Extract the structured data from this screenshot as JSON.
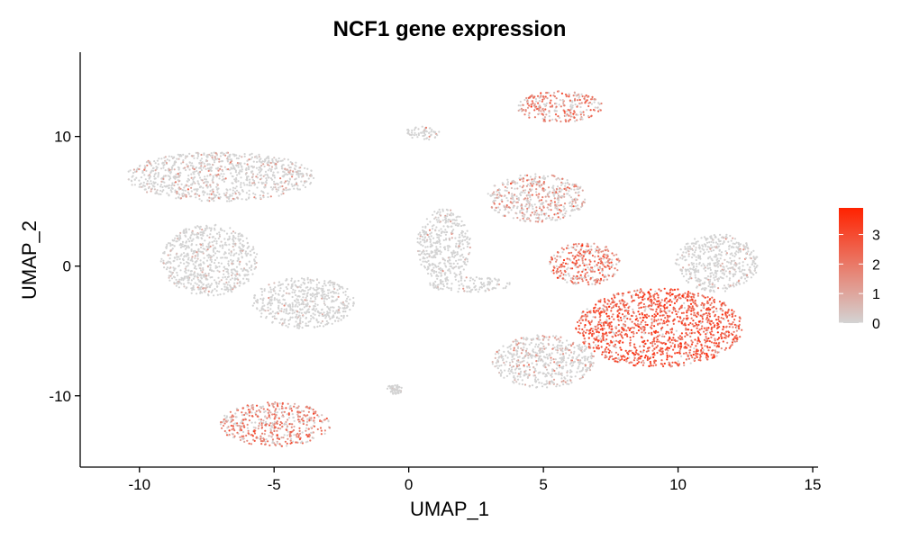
{
  "chart_data": {
    "type": "scatter",
    "title": "NCF1 gene expression",
    "xlabel": "UMAP_1",
    "ylabel": "UMAP_2",
    "xlim": [
      -12.2,
      15.2
    ],
    "ylim": [
      -15.5,
      16.5
    ],
    "x_ticks": [
      {
        "value": -10,
        "label": "-10"
      },
      {
        "value": -5,
        "label": "-5"
      },
      {
        "value": 0,
        "label": "0"
      },
      {
        "value": 5,
        "label": "5"
      },
      {
        "value": 10,
        "label": "10"
      },
      {
        "value": 15,
        "label": "15"
      }
    ],
    "y_ticks": [
      {
        "value": -10,
        "label": "-10"
      },
      {
        "value": 0,
        "label": "0"
      },
      {
        "value": 10,
        "label": "10"
      }
    ],
    "grid": false,
    "legend": {
      "placement": "right",
      "range": [
        0,
        3.9
      ],
      "low_color": "#d3d3d3",
      "high_color": "#ff2200",
      "ticks": [
        {
          "value": 0,
          "label": "0"
        },
        {
          "value": 1,
          "label": "1"
        },
        {
          "value": 2,
          "label": "2"
        },
        {
          "value": 3,
          "label": "3"
        }
      ]
    },
    "clusters": [
      {
        "x": [
          -10.5,
          -3.5
        ],
        "y": [
          5.0,
          8.8
        ],
        "mean_expression": 0.5
      },
      {
        "x": [
          -9.2,
          -5.6
        ],
        "y": [
          -2.3,
          3.2
        ],
        "mean_expression": 0.15
      },
      {
        "x": [
          -5.8,
          -2.0
        ],
        "y": [
          -4.8,
          -0.8
        ],
        "mean_expression": 0.1
      },
      {
        "x": [
          0.3,
          2.3
        ],
        "y": [
          -1.2,
          4.4
        ],
        "mean_expression": 0.05
      },
      {
        "x": [
          0.7,
          3.8
        ],
        "y": [
          -2.0,
          -0.8
        ],
        "mean_expression": 0.05
      },
      {
        "x": [
          -0.2,
          1.2
        ],
        "y": [
          9.7,
          10.8
        ],
        "mean_expression": 0.05
      },
      {
        "x": [
          4.0,
          7.2
        ],
        "y": [
          11.1,
          13.5
        ],
        "mean_expression": 1.8
      },
      {
        "x": [
          2.9,
          6.6
        ],
        "y": [
          3.4,
          7.1
        ],
        "mean_expression": 1.2
      },
      {
        "x": [
          5.2,
          7.9
        ],
        "y": [
          -1.5,
          1.8
        ],
        "mean_expression": 2.0
      },
      {
        "x": [
          6.2,
          12.4
        ],
        "y": [
          -7.8,
          -1.7
        ],
        "mean_expression": 2.6
      },
      {
        "x": [
          3.1,
          6.9
        ],
        "y": [
          -9.4,
          -5.3
        ],
        "mean_expression": 0.6
      },
      {
        "x": [
          9.9,
          13.0
        ],
        "y": [
          -2.0,
          2.5
        ],
        "mean_expression": 0.3
      },
      {
        "x": [
          -7.0,
          -2.9
        ],
        "y": [
          -13.9,
          -10.5
        ],
        "mean_expression": 1.8
      },
      {
        "x": [
          -0.8,
          -0.2
        ],
        "y": [
          -9.9,
          -9.1
        ],
        "mean_expression": 0.05
      }
    ]
  }
}
